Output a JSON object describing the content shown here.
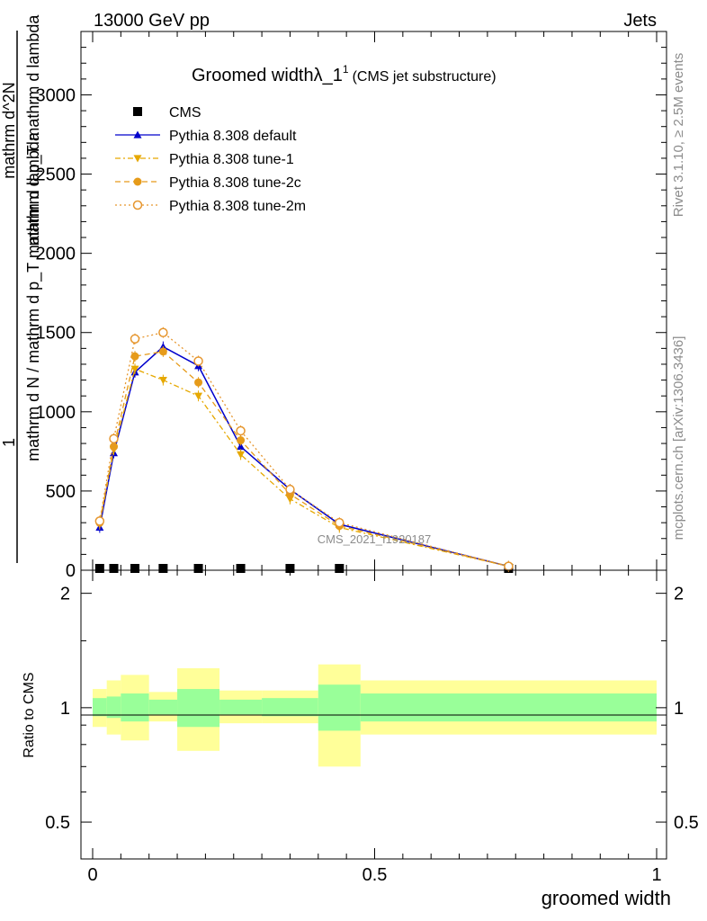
{
  "header": {
    "left": "13000 GeV pp",
    "right": "Jets"
  },
  "title": {
    "main": "Groomed width",
    "symbol": "λ_1",
    "superscript": "1",
    "sub": "(CMS jet substructure)"
  },
  "side_text": {
    "rivet": "Rivet 3.1.10, ≥ 2.5M events",
    "mcplots": "mcplots.cern.ch [arXiv:1306.3436]"
  },
  "watermark": "CMS_2021_I1920187",
  "ylabel_main": {
    "numerator_1": "1",
    "denominator_1": "mathrm d N / mathrm d p_T mathrm d lambda",
    "numerator_2": "mathrm d^2N",
    "denominator_2": "mathrm d p_T mathrm d lambda"
  },
  "ylabel_ratio": "Ratio to CMS",
  "xlabel": "groomed width",
  "legend": {
    "entries": [
      {
        "label": "CMS",
        "color": "#000000",
        "marker": "square"
      },
      {
        "label": "Pythia 8.308 default",
        "color": "#0000cc",
        "marker": "triangle-up"
      },
      {
        "label": "Pythia 8.308 tune-1",
        "color": "#e6a800",
        "marker": "triangle-down"
      },
      {
        "label": "Pythia 8.308 tune-2c",
        "color": "#e69b1a",
        "marker": "circle"
      },
      {
        "label": "Pythia 8.308 tune-2m",
        "color": "#e6962e",
        "marker": "open-circle"
      }
    ]
  },
  "chart_data": [
    {
      "type": "line",
      "panel": "main",
      "xlim": [
        -0.02,
        1.02
      ],
      "ylim": [
        0,
        3400
      ],
      "yticks": [
        0,
        500,
        1000,
        1500,
        2000,
        2500,
        3000
      ],
      "ytick_labels": [
        "0",
        "500",
        "1000",
        "1500",
        "2000",
        "2500",
        "3000"
      ],
      "bin_edges": [
        0.0,
        0.025,
        0.05,
        0.1,
        0.15,
        0.225,
        0.3,
        0.4,
        0.475,
        1.0
      ],
      "x": [
        0.0125,
        0.0375,
        0.075,
        0.125,
        0.1875,
        0.2625,
        0.35,
        0.4375,
        0.7375
      ],
      "series": [
        {
          "name": "CMS",
          "values": [
            3,
            3,
            3,
            3,
            3,
            3,
            3,
            3,
            3
          ]
        },
        {
          "name": "Pythia 8.308 default",
          "values": [
            270,
            740,
            1250,
            1410,
            1290,
            780,
            510,
            290,
            25
          ]
        },
        {
          "name": "Pythia 8.308 tune-1",
          "values": [
            290,
            760,
            1270,
            1200,
            1100,
            730,
            450,
            270,
            25
          ]
        },
        {
          "name": "Pythia 8.308 tune-2c",
          "values": [
            300,
            780,
            1350,
            1380,
            1185,
            820,
            480,
            280,
            25
          ]
        },
        {
          "name": "Pythia 8.308 tune-2m",
          "values": [
            310,
            830,
            1460,
            1500,
            1320,
            880,
            510,
            300,
            25
          ]
        }
      ]
    },
    {
      "type": "area",
      "panel": "ratio",
      "xlim": [
        -0.02,
        1.02
      ],
      "ylim": [
        0.4,
        2.3
      ],
      "yticks": [
        0.5,
        1,
        2
      ],
      "ytick_labels": [
        "0.5",
        "1",
        "2"
      ],
      "xticks": [
        0,
        0.5,
        1
      ],
      "xtick_labels": [
        "0",
        "0.5",
        "1"
      ],
      "bin_edges": [
        0.0,
        0.025,
        0.05,
        0.1,
        0.15,
        0.225,
        0.3,
        0.4,
        0.475,
        1.0
      ],
      "band_inner": {
        "lower": [
          0.95,
          0.94,
          0.92,
          0.96,
          0.89,
          0.96,
          0.95,
          0.87,
          0.92
        ],
        "upper": [
          1.06,
          1.07,
          1.09,
          1.05,
          1.12,
          1.05,
          1.06,
          1.15,
          1.09
        ]
      },
      "band_outer": {
        "lower": [
          0.89,
          0.85,
          0.82,
          0.92,
          0.77,
          0.91,
          0.91,
          0.7,
          0.85
        ],
        "upper": [
          1.12,
          1.18,
          1.22,
          1.1,
          1.27,
          1.11,
          1.11,
          1.3,
          1.18
        ]
      },
      "band_colors": {
        "inner": "#99ff99",
        "outer": "#ffff99"
      }
    }
  ]
}
